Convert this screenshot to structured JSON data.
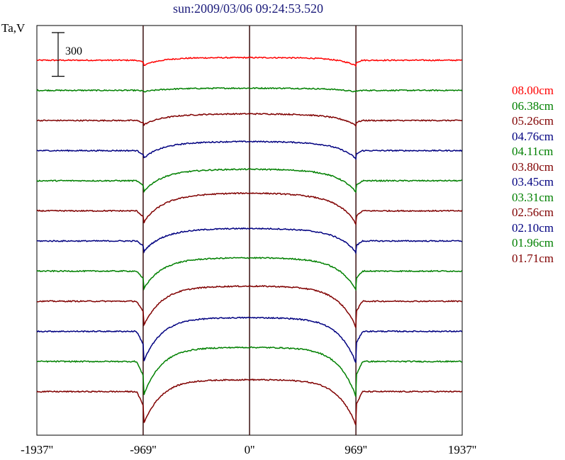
{
  "title": "sun:2009/03/06 09:24:53.520",
  "ylabel": "Ta,V",
  "scale_bar_label": "300",
  "chart_data": {
    "type": "line",
    "title": "sun:2009/03/06 09:24:53.520",
    "ylabel": "Ta,V",
    "xlabel": "",
    "xlim": [
      -1937,
      1937
    ],
    "xticks": [
      "-1937''",
      "-969''",
      "0''",
      "969''",
      "1937''"
    ],
    "xtick_values": [
      -1937,
      -969,
      0,
      969,
      1937
    ],
    "vertical_lines": [
      -969,
      0,
      969
    ],
    "scale_bar_value": 300,
    "grid": false,
    "legend_position": "right",
    "series": [
      {
        "name": "08.00cm",
        "color": "#ff0000",
        "offset": 3600,
        "disk_peak": 20,
        "limb_drop": 60
      },
      {
        "name": "06.38cm",
        "color": "#008000",
        "offset": 3300,
        "disk_peak": 20,
        "limb_drop": 20
      },
      {
        "name": "05.26cm",
        "color": "#800000",
        "offset": 3000,
        "disk_peak": 60,
        "limb_drop": 60
      },
      {
        "name": "04.76cm",
        "color": "#000080",
        "offset": 2700,
        "disk_peak": 80,
        "limb_drop": 100
      },
      {
        "name": "04.11cm",
        "color": "#008000",
        "offset": 2400,
        "disk_peak": 100,
        "limb_drop": 140
      },
      {
        "name": "03.80cm",
        "color": "#800000",
        "offset": 2100,
        "disk_peak": 160,
        "limb_drop": 160
      },
      {
        "name": "03.45cm",
        "color": "#000080",
        "offset": 1800,
        "disk_peak": 110,
        "limb_drop": 140
      },
      {
        "name": "03.31cm",
        "color": "#008000",
        "offset": 1500,
        "disk_peak": 110,
        "limb_drop": 220
      },
      {
        "name": "02.56cm",
        "color": "#800000",
        "offset": 1200,
        "disk_peak": 120,
        "limb_drop": 300
      },
      {
        "name": "02.10cm",
        "color": "#000080",
        "offset": 900,
        "disk_peak": 100,
        "limb_drop": 360
      },
      {
        "name": "01.96cm",
        "color": "#008000",
        "offset": 600,
        "disk_peak": 100,
        "limb_drop": 400
      },
      {
        "name": "01.71cm",
        "color": "#800000",
        "offset": 300,
        "disk_peak": 80,
        "limb_drop": 380
      }
    ]
  }
}
